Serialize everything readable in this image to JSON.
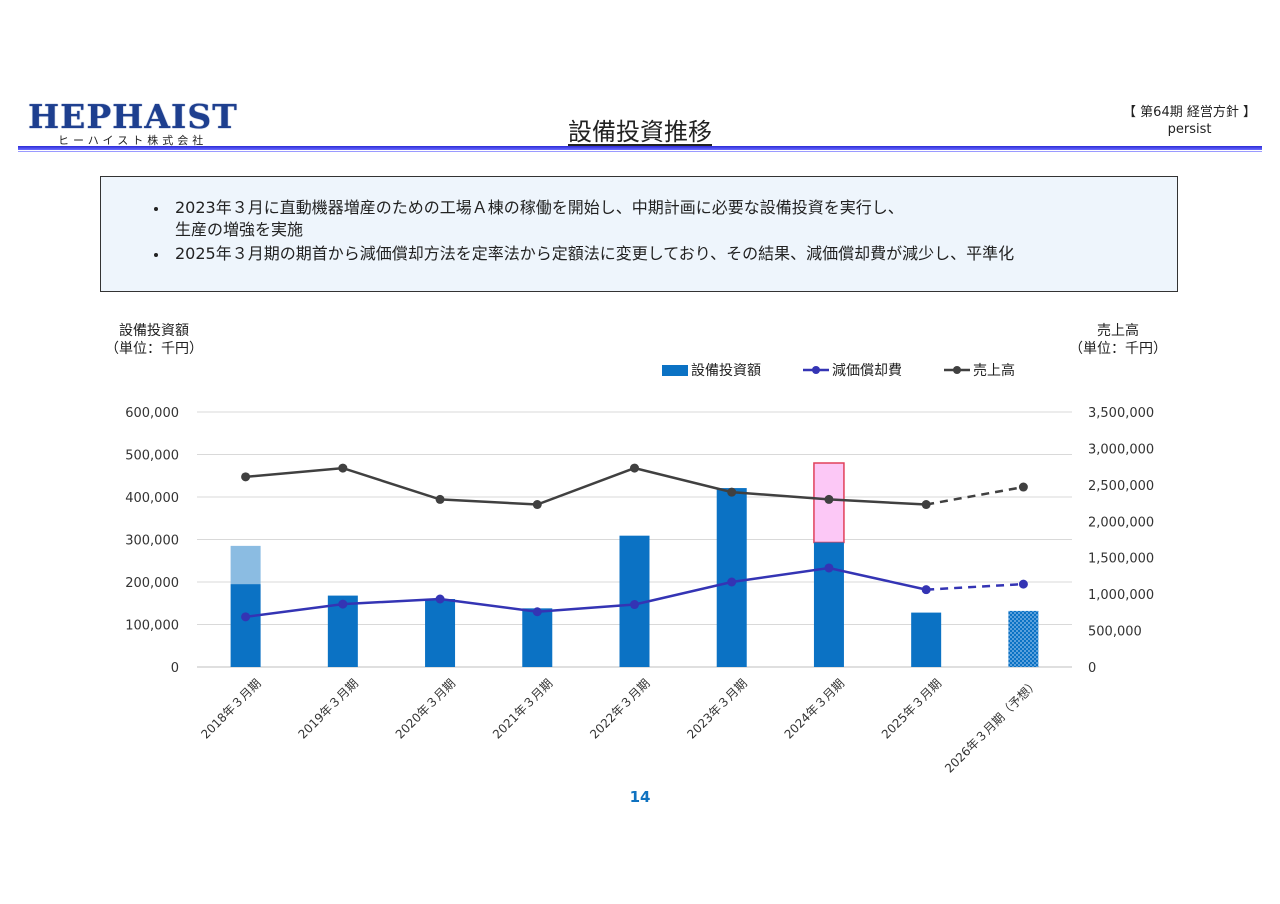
{
  "header": {
    "logo_text": "HEPHAIST",
    "logo_sub": "ヒーハイスト株式会社",
    "title": "設備投資推移",
    "corner_line1": "【 第64期 経営方針 】",
    "corner_line2": "persist"
  },
  "notes": [
    "2023年３月に直動機器増産のための工場Ａ棟の稼働を開始し、中期計画に必要な設備投資を実行し、\n生産の増強を実施",
    "2025年３月期の期首から減価償却方法を定率法から定額法に変更しており、その結果、減価償却費が減少し、平準化"
  ],
  "axes": {
    "left_title_line1": "設備投資額",
    "left_title_line2": "（単位：千円）",
    "right_title_line1": "売上高",
    "right_title_line2": "（単位：千円）"
  },
  "page_number": "14",
  "colors": {
    "bar": "#0b72c4",
    "bar_light": "#8bbce2",
    "highlight_fill": "#fcc8f6",
    "highlight_border": "#e0405a",
    "depreciation": "#3434b4",
    "sales": "#404040",
    "grid": "#d9d9d9"
  },
  "chart_data": {
    "type": "bar",
    "categories": [
      "2018年３月期",
      "2019年３月期",
      "2020年３月期",
      "2021年３月期",
      "2022年３月期",
      "2023年３月期",
      "2024年３月期",
      "2025年３月期",
      "2026年３月期（予想）"
    ],
    "series": [
      {
        "name": "設備投資額",
        "axis": "left",
        "type": "bar",
        "values": [
          195000,
          168000,
          160000,
          138000,
          309000,
          421000,
          293000,
          128000,
          132000
        ],
        "stacked_light_top": [
          285000,
          null,
          null,
          null,
          null,
          null,
          null,
          null,
          null
        ],
        "highlight_top": [
          null,
          null,
          null,
          null,
          null,
          null,
          480000,
          null,
          null
        ],
        "forecast_pattern": [
          false,
          false,
          false,
          false,
          false,
          false,
          false,
          false,
          true
        ]
      },
      {
        "name": "減価償却費",
        "axis": "left",
        "type": "line",
        "values": [
          118000,
          148000,
          160000,
          130000,
          147000,
          200000,
          233000,
          182000,
          195000
        ],
        "dashed_from_index": 7
      },
      {
        "name": "売上高",
        "axis": "right",
        "type": "line",
        "values": [
          2610000,
          2730000,
          2300000,
          2230000,
          2730000,
          2400000,
          2300000,
          2230000,
          2470000
        ],
        "dashed_from_index": 7
      }
    ],
    "ylim_left": [
      0,
      600000
    ],
    "ylim_right": [
      0,
      3500000
    ],
    "yticks_left": [
      "600,000",
      "500,000",
      "400,000",
      "300,000",
      "200,000",
      "100,000",
      "0"
    ],
    "yticks_right": [
      "3,500,000",
      "3,000,000",
      "2,500,000",
      "2,000,000",
      "1,500,000",
      "1,000,000",
      "500,000",
      "0"
    ],
    "legend_position": "top-right",
    "grid": true
  }
}
